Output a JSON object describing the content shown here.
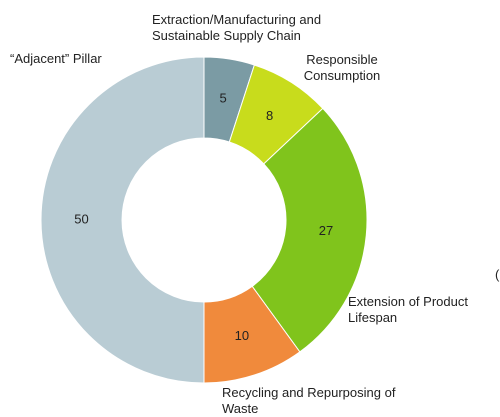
{
  "chart_data": {
    "type": "donut",
    "categories": [
      "Extraction/Manufacturing and Sustainable Supply Chain",
      "Responsible Consumption",
      "Extension of Product Lifespan",
      "Recycling and Repurposing of Waste",
      "“Adjacent” Pillar"
    ],
    "values": [
      5,
      8,
      27,
      10,
      50
    ],
    "colors": [
      "#7b9ba4",
      "#c8dc1c",
      "#80c41c",
      "#f08a3c",
      "#b9ccd4"
    ],
    "annotation": "("
  }
}
